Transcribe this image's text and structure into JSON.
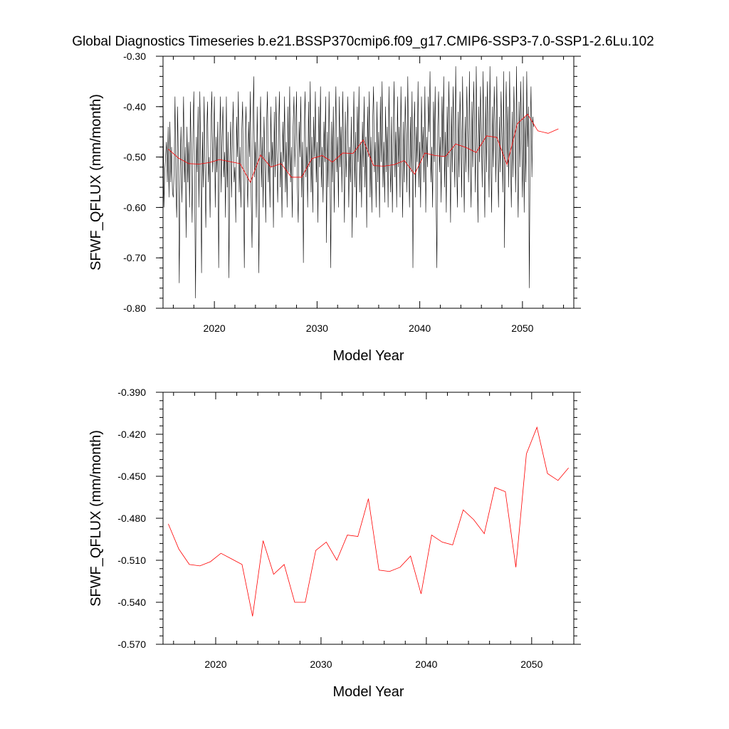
{
  "title": "Global Diagnostics Timeseries b.e21.BSSP370cmip6.f09_g17.CMIP6-SSP3-7.0-SSP1-2.6Lu.102",
  "colors": {
    "monthly_line": "#000000",
    "annual_line": "#ff0000"
  },
  "chart_data": [
    {
      "type": "line",
      "xlabel": "Model Year",
      "ylabel": "SFWF_QFLUX (mm/month)",
      "xlim": [
        2015,
        2055
      ],
      "ylim": [
        -0.8,
        -0.3
      ],
      "xticks": [
        "2020",
        "2030",
        "2040",
        "2050"
      ],
      "yticks": [
        "-0.30",
        "-0.40",
        "-0.50",
        "-0.60",
        "-0.70",
        "-0.80"
      ],
      "grid": false,
      "series": [
        {
          "color": "#000000",
          "x_start": 2015.0,
          "x_step": 0.0833333,
          "values": [
            -0.35,
            -0.6,
            -0.53,
            -0.5,
            -0.47,
            -0.55,
            -0.44,
            -0.58,
            -0.43,
            -0.55,
            -0.48,
            -0.57,
            -0.58,
            -0.52,
            -0.38,
            -0.56,
            -0.62,
            -0.4,
            -0.52,
            -0.75,
            -0.52,
            -0.44,
            -0.59,
            -0.49,
            -0.38,
            -0.55,
            -0.48,
            -0.66,
            -0.44,
            -0.55,
            -0.47,
            -0.6,
            -0.39,
            -0.51,
            -0.63,
            -0.45,
            -0.37,
            -0.57,
            -0.78,
            -0.46,
            -0.53,
            -0.4,
            -0.6,
            -0.37,
            -0.5,
            -0.73,
            -0.45,
            -0.56,
            -0.38,
            -0.52,
            -0.64,
            -0.46,
            -0.39,
            -0.55,
            -0.5,
            -0.62,
            -0.44,
            -0.37,
            -0.53,
            -0.48,
            -0.38,
            -0.6,
            -0.46,
            -0.53,
            -0.43,
            -0.72,
            -0.5,
            -0.38,
            -0.57,
            -0.46,
            -0.4,
            -0.54,
            -0.49,
            -0.62,
            -0.38,
            -0.56,
            -0.45,
            -0.74,
            -0.51,
            -0.43,
            -0.58,
            -0.47,
            -0.39,
            -0.55,
            -0.52,
            -0.63,
            -0.42,
            -0.5,
            -0.37,
            -0.57,
            -0.48,
            -0.6,
            -0.45,
            -0.39,
            -0.55,
            -0.72,
            -0.46,
            -0.4,
            -0.53,
            -0.6,
            -0.43,
            -0.5,
            -0.37,
            -0.58,
            -0.68,
            -0.45,
            -0.34,
            -0.54,
            -0.47,
            -0.62,
            -0.4,
            -0.52,
            -0.73,
            -0.49,
            -0.38,
            -0.56,
            -0.46,
            -0.6,
            -0.42,
            -0.51,
            -0.63,
            -0.44,
            -0.37,
            -0.55,
            -0.49,
            -0.6,
            -0.4,
            -0.52,
            -0.47,
            -0.64,
            -0.41,
            -0.54,
            -0.38,
            -0.5,
            -0.59,
            -0.45,
            -0.37,
            -0.56,
            -0.49,
            -0.62,
            -0.43,
            -0.51,
            -0.38,
            -0.57,
            -0.47,
            -0.6,
            -0.4,
            -0.53,
            -0.36,
            -0.55,
            -0.48,
            -0.62,
            -0.44,
            -0.38,
            -0.52,
            -0.45,
            -0.37,
            -0.56,
            -0.63,
            -0.43,
            -0.5,
            -0.38,
            -0.58,
            -0.47,
            -0.71,
            -0.45,
            -0.37,
            -0.54,
            -0.48,
            -0.6,
            -0.39,
            -0.52,
            -0.35,
            -0.57,
            -0.46,
            -0.61,
            -0.42,
            -0.5,
            -0.37,
            -0.55,
            -0.47,
            -0.63,
            -0.4,
            -0.52,
            -0.36,
            -0.56,
            -0.48,
            -0.59,
            -0.43,
            -0.51,
            -0.38,
            -0.67,
            -0.45,
            -0.56,
            -0.37,
            -0.5,
            -0.72,
            -0.43,
            -0.55,
            -0.4,
            -0.61,
            -0.47,
            -0.36,
            -0.53,
            -0.46,
            -0.6,
            -0.38,
            -0.52,
            -0.44,
            -0.57,
            -0.37,
            -0.5,
            -0.63,
            -0.41,
            -0.54,
            -0.46,
            -0.38,
            -0.6,
            -0.48,
            -0.55,
            -0.42,
            -0.66,
            -0.49,
            -0.37,
            -0.56,
            -0.45,
            -0.62,
            -0.4,
            -0.51,
            -0.36,
            -0.57,
            -0.47,
            -0.6,
            -0.43,
            -0.52,
            -0.38,
            -0.56,
            -0.46,
            -0.64,
            -0.4,
            -0.5,
            -0.37,
            -0.58,
            -0.46,
            -0.61,
            -0.43,
            -0.36,
            -0.53,
            -0.47,
            -0.6,
            -0.39,
            -0.55,
            -0.45,
            -0.62,
            -0.38,
            -0.51,
            -0.35,
            -0.56,
            -0.47,
            -0.59,
            -0.4,
            -0.53,
            -0.44,
            -0.6,
            -0.36,
            -0.5,
            -0.57,
            -0.42,
            -0.61,
            -0.46,
            -0.35,
            -0.54,
            -0.45,
            -0.6,
            -0.38,
            -0.52,
            -0.44,
            -0.58,
            -0.36,
            -0.49,
            -0.62,
            -0.43,
            -0.55,
            -0.38,
            -0.46,
            -0.57,
            -0.34,
            -0.5,
            -0.6,
            -0.42,
            -0.53,
            -0.37,
            -0.72,
            -0.46,
            -0.39,
            -0.58,
            -0.44,
            -0.51,
            -0.35,
            -0.56,
            -0.47,
            -0.6,
            -0.38,
            -0.5,
            -0.44,
            -0.55,
            -0.36,
            -0.61,
            -0.46,
            -0.52,
            -0.38,
            -0.45,
            -0.33,
            -0.55,
            -0.48,
            -0.6,
            -0.39,
            -0.51,
            -0.36,
            -0.57,
            -0.72,
            -0.44,
            -0.37,
            -0.53,
            -0.46,
            -0.59,
            -0.38,
            -0.5,
            -0.34,
            -0.56,
            -0.45,
            -0.61,
            -0.4,
            -0.52,
            -0.35,
            -0.48,
            -0.63,
            -0.4,
            -0.53,
            -0.36,
            -0.47,
            -0.56,
            -0.32,
            -0.5,
            -0.6,
            -0.41,
            -0.54,
            -0.37,
            -0.45,
            -0.58,
            -0.34,
            -0.49,
            -0.61,
            -0.42,
            -0.53,
            -0.36,
            -0.46,
            -0.55,
            -0.33,
            -0.5,
            -0.6,
            -0.39,
            -0.52,
            -0.35,
            -0.44,
            -0.57,
            -0.32,
            -0.48,
            -0.63,
            -0.4,
            -0.51,
            -0.36,
            -0.45,
            -0.56,
            -0.33,
            -0.5,
            -0.62,
            -0.38,
            -0.53,
            -0.35,
            -0.46,
            -0.58,
            -0.32,
            -0.49,
            -0.61,
            -0.4,
            -0.52,
            -0.36,
            -0.44,
            -0.55,
            -0.34,
            -0.5,
            -0.6,
            -0.42,
            -0.53,
            -0.37,
            -0.46,
            -0.57,
            -0.33,
            -0.68,
            -0.45,
            -0.35,
            -0.52,
            -0.4,
            -0.56,
            -0.33,
            -0.49,
            -0.6,
            -0.41,
            -0.54,
            -0.36,
            -0.45,
            -0.57,
            -0.32,
            -0.5,
            -0.62,
            -0.39,
            -0.52,
            -0.35,
            -0.47,
            -0.58,
            -0.34,
            -0.61,
            -0.42,
            -0.55,
            -0.33,
            -0.48,
            -0.4,
            -0.76,
            -0.46,
            -0.36,
            -0.54,
            -0.42,
            -0.44
          ]
        },
        {
          "color": "#ff0000",
          "x": [
            2015.5,
            2016.5,
            2017.5,
            2018.5,
            2019.5,
            2020.5,
            2021.5,
            2022.5,
            2023.5,
            2024.5,
            2025.5,
            2026.5,
            2027.5,
            2028.5,
            2029.5,
            2030.5,
            2031.5,
            2032.5,
            2033.5,
            2034.5,
            2035.5,
            2036.5,
            2037.5,
            2038.5,
            2039.5,
            2040.5,
            2041.5,
            2042.5,
            2043.5,
            2044.5,
            2045.5,
            2046.5,
            2047.5,
            2048.5,
            2049.5,
            2050.5,
            2051.5,
            2052.5,
            2053.5
          ],
          "values": [
            -0.484,
            -0.502,
            -0.513,
            -0.514,
            -0.511,
            -0.505,
            -0.509,
            -0.513,
            -0.55,
            -0.496,
            -0.52,
            -0.513,
            -0.54,
            -0.54,
            -0.503,
            -0.497,
            -0.51,
            -0.492,
            -0.493,
            -0.466,
            -0.517,
            -0.518,
            -0.515,
            -0.507,
            -0.534,
            -0.492,
            -0.497,
            -0.499,
            -0.474,
            -0.481,
            -0.491,
            -0.458,
            -0.461,
            -0.515,
            -0.434,
            -0.415,
            -0.448,
            -0.453,
            -0.444
          ]
        }
      ]
    },
    {
      "type": "line",
      "xlabel": "Model Year",
      "ylabel": "SFWF_QFLUX (mm/month)",
      "xlim": [
        2015,
        2054
      ],
      "ylim": [
        -0.57,
        -0.39
      ],
      "xticks": [
        "2020",
        "2030",
        "2040",
        "2050"
      ],
      "yticks": [
        "-0.390",
        "-0.420",
        "-0.450",
        "-0.480",
        "-0.510",
        "-0.540",
        "-0.570"
      ],
      "grid": false,
      "series": [
        {
          "color": "#ff0000",
          "x": [
            2015.5,
            2016.5,
            2017.5,
            2018.5,
            2019.5,
            2020.5,
            2021.5,
            2022.5,
            2023.5,
            2024.5,
            2025.5,
            2026.5,
            2027.5,
            2028.5,
            2029.5,
            2030.5,
            2031.5,
            2032.5,
            2033.5,
            2034.5,
            2035.5,
            2036.5,
            2037.5,
            2038.5,
            2039.5,
            2040.5,
            2041.5,
            2042.5,
            2043.5,
            2044.5,
            2045.5,
            2046.5,
            2047.5,
            2048.5,
            2049.5,
            2050.5,
            2051.5,
            2052.5,
            2053.5
          ],
          "values": [
            -0.484,
            -0.502,
            -0.513,
            -0.514,
            -0.511,
            -0.505,
            -0.509,
            -0.513,
            -0.55,
            -0.496,
            -0.52,
            -0.513,
            -0.54,
            -0.54,
            -0.503,
            -0.497,
            -0.51,
            -0.492,
            -0.493,
            -0.466,
            -0.517,
            -0.518,
            -0.515,
            -0.507,
            -0.534,
            -0.492,
            -0.497,
            -0.499,
            -0.474,
            -0.481,
            -0.491,
            -0.458,
            -0.461,
            -0.515,
            -0.434,
            -0.415,
            -0.448,
            -0.453,
            -0.444
          ]
        }
      ]
    }
  ]
}
